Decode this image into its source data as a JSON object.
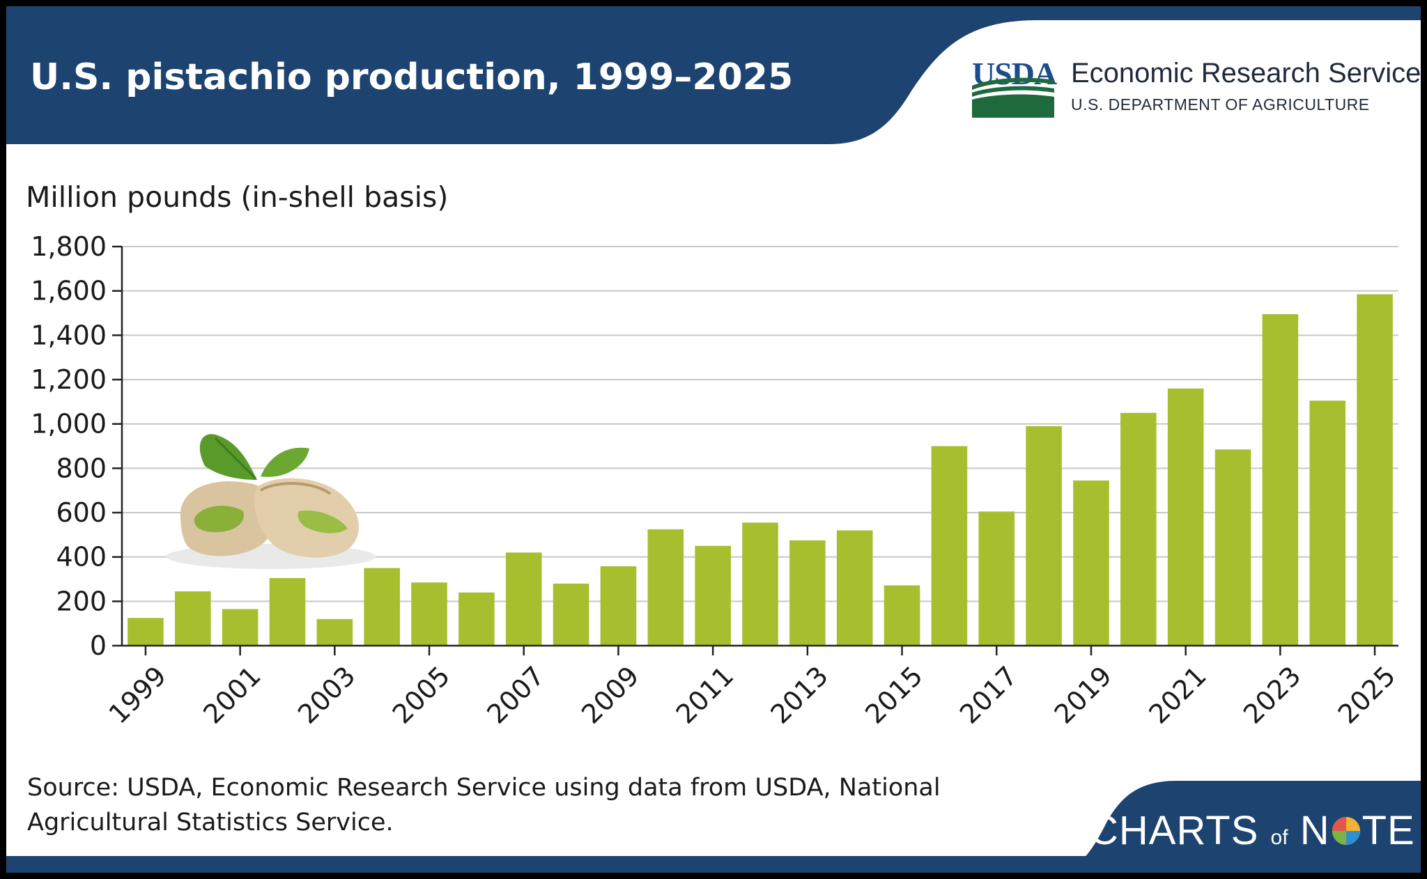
{
  "header": {
    "title": "U.S. pistachio production, 1999–2025",
    "agency_abbrev": "USDA",
    "agency_name": "Economic Research Service",
    "department": "U.S. DEPARTMENT OF AGRICULTURE"
  },
  "colors": {
    "header_bg": "#1d4370",
    "bar": "#a7bf2e",
    "usda_blue": "#1b4c8c",
    "usda_green": "#1e6a3c",
    "text": "#1a1a1a"
  },
  "footer": {
    "source": "Source: USDA, Economic Research Service using data from USDA, National Agricultural Statistics Service.",
    "brand_left": "CHARTS",
    "brand_of": "of",
    "brand_n": "N",
    "brand_right": "TE"
  },
  "chart_data": {
    "type": "bar",
    "ylabel": "Million pounds (in-shell basis)",
    "ylim": [
      0,
      1800
    ],
    "yticks": [
      0,
      200,
      400,
      600,
      800,
      1000,
      1200,
      1400,
      1600,
      1800
    ],
    "ytick_labels": [
      "0",
      "200",
      "400",
      "600",
      "800",
      "1,000",
      "1,200",
      "1,400",
      "1,600",
      "1,800"
    ],
    "grid": true,
    "categories": [
      "1999",
      "2000",
      "2001",
      "2002",
      "2003",
      "2004",
      "2005",
      "2006",
      "2007",
      "2008",
      "2009",
      "2010",
      "2011",
      "2012",
      "2013",
      "2014",
      "2015",
      "2016",
      "2017",
      "2018",
      "2019",
      "2020",
      "2021",
      "2022",
      "2023",
      "2024",
      "2025"
    ],
    "xtick_labels": [
      "1999",
      "2001",
      "2003",
      "2005",
      "2007",
      "2009",
      "2011",
      "2013",
      "2015",
      "2017",
      "2019",
      "2021",
      "2023",
      "2025"
    ],
    "values": [
      125,
      245,
      165,
      305,
      120,
      350,
      285,
      240,
      420,
      280,
      358,
      525,
      450,
      555,
      475,
      520,
      272,
      900,
      605,
      990,
      745,
      1050,
      1160,
      885,
      1495,
      1105,
      1585
    ]
  },
  "decoration": {
    "illustration": "pistachio-illustration"
  }
}
